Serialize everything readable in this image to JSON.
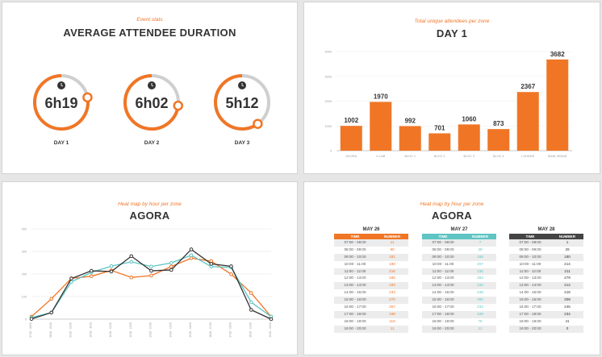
{
  "slides": {
    "event_stats": {
      "subtitle": "Event stats",
      "title": "AVERAGE ATTENDEE DURATION",
      "days": [
        {
          "value": "6h19",
          "label": "DAY 1",
          "progress": 0.78
        },
        {
          "value": "6h02",
          "label": "DAY 2",
          "progress": 0.73
        },
        {
          "value": "5h12",
          "label": "DAY 3",
          "progress": 0.6
        }
      ]
    },
    "unique_attendees": {
      "subtitle": "Total unique attendees per zone",
      "title": "DAY 1"
    },
    "heatmap_line": {
      "subtitle": "Heat map by hour per zone",
      "title": "AGORA"
    },
    "heatmap_table": {
      "subtitle": "Heat map by hour per zone",
      "title": "AGORA",
      "col_time": "TIME",
      "col_number": "NUMBER",
      "tables": [
        {
          "day": "MAY 26",
          "color": "#f07626",
          "rows": [
            [
              "07:00 - 08:00",
              "11"
            ],
            [
              "08:00 - 09:00",
              "90"
            ],
            [
              "09:00 - 10:00",
              "181"
            ],
            [
              "10:00 - 11:00",
              "190"
            ],
            [
              "11:00 - 12:00",
              "216"
            ],
            [
              "12:00 - 13:00",
              "185"
            ],
            [
              "13:00 - 14:00",
              "193"
            ],
            [
              "14:00 - 15:00",
              "233"
            ],
            [
              "15:00 - 16:00",
              "270"
            ],
            [
              "16:00 - 17:00",
              "257"
            ],
            [
              "17:00 - 18:00",
              "199"
            ],
            [
              "18:00 - 19:00",
              "116"
            ],
            [
              "19:00 - 20:00",
              "11"
            ]
          ]
        },
        {
          "day": "MAY 27",
          "color": "#5fc4c4",
          "rows": [
            [
              "07:00 - 08:00",
              "7"
            ],
            [
              "08:00 - 09:00",
              "29"
            ],
            [
              "09:00 - 10:00",
              "165"
            ],
            [
              "10:00 - 11:00",
              "207"
            ],
            [
              "11:00 - 12:00",
              "235"
            ],
            [
              "12:00 - 13:00",
              "254"
            ],
            [
              "13:00 - 14:00",
              "233"
            ],
            [
              "14:00 - 15:00",
              "249"
            ],
            [
              "15:00 - 16:00",
              "283"
            ],
            [
              "16:00 - 17:00",
              "233"
            ],
            [
              "17:00 - 18:00",
              "229"
            ],
            [
              "18:00 - 19:00",
              "75"
            ],
            [
              "19:00 - 20:00",
              "11"
            ]
          ]
        },
        {
          "day": "MAY 28",
          "color": "#444444",
          "rows": [
            [
              "07:00 - 08:00",
              "1"
            ],
            [
              "08:00 - 09:00",
              "29"
            ],
            [
              "09:00 - 10:00",
              "180"
            ],
            [
              "10:00 - 11:00",
              "214"
            ],
            [
              "11:00 - 12:00",
              "211"
            ],
            [
              "12:00 - 13:00",
              "279"
            ],
            [
              "13:00 - 14:00",
              "214"
            ],
            [
              "14:00 - 15:00",
              "218"
            ],
            [
              "15:00 - 16:00",
              "309"
            ],
            [
              "16:00 - 17:00",
              "245"
            ],
            [
              "17:00 - 18:00",
              "234"
            ],
            [
              "18:00 - 19:00",
              "41"
            ],
            [
              "19:00 - 20:00",
              "0"
            ]
          ]
        }
      ]
    }
  },
  "chart_data": [
    {
      "type": "bar",
      "title": "DAY 1",
      "subtitle": "Total unique attendees per zone",
      "categories": [
        "AGORA",
        "C-LAB",
        "BLOC 1",
        "BLOC 2",
        "BLOC 3",
        "BLOC 4",
        "LOUNGE",
        "MAIN VENUE"
      ],
      "values": [
        1002,
        1970,
        992,
        701,
        1060,
        873,
        2367,
        3682
      ],
      "yticks": [
        0,
        1000,
        2000,
        3000,
        4000
      ],
      "ylim": [
        0,
        4000
      ],
      "color": "#f07626"
    },
    {
      "type": "line",
      "title": "AGORA",
      "subtitle": "Heat map by hour per zone",
      "categories": [
        "07:00 - 08:00",
        "08:00 - 09:00",
        "09:00 - 10:00",
        "10:00 - 11:00",
        "11:00 - 12:00",
        "12:00 - 13:00",
        "13:00 - 14:00",
        "14:00 - 15:00",
        "15:00 - 16:00",
        "16:00 - 17:00",
        "17:00 - 18:00",
        "18:00 - 19:00",
        "19:00 - 20:00"
      ],
      "yticks": [
        0,
        100,
        200,
        300,
        400
      ],
      "ylim": [
        0,
        400
      ],
      "series": [
        {
          "color": "#f07626",
          "values": [
            11,
            90,
            181,
            190,
            216,
            185,
            193,
            233,
            270,
            257,
            199,
            116,
            11
          ]
        },
        {
          "color": "#5fc4c4",
          "values": [
            7,
            29,
            165,
            207,
            235,
            254,
            233,
            249,
            283,
            233,
            229,
            75,
            11
          ]
        },
        {
          "color": "#333333",
          "values": [
            1,
            29,
            180,
            214,
            211,
            279,
            214,
            218,
            309,
            245,
            234,
            41,
            0
          ]
        }
      ],
      "grid": true
    }
  ]
}
